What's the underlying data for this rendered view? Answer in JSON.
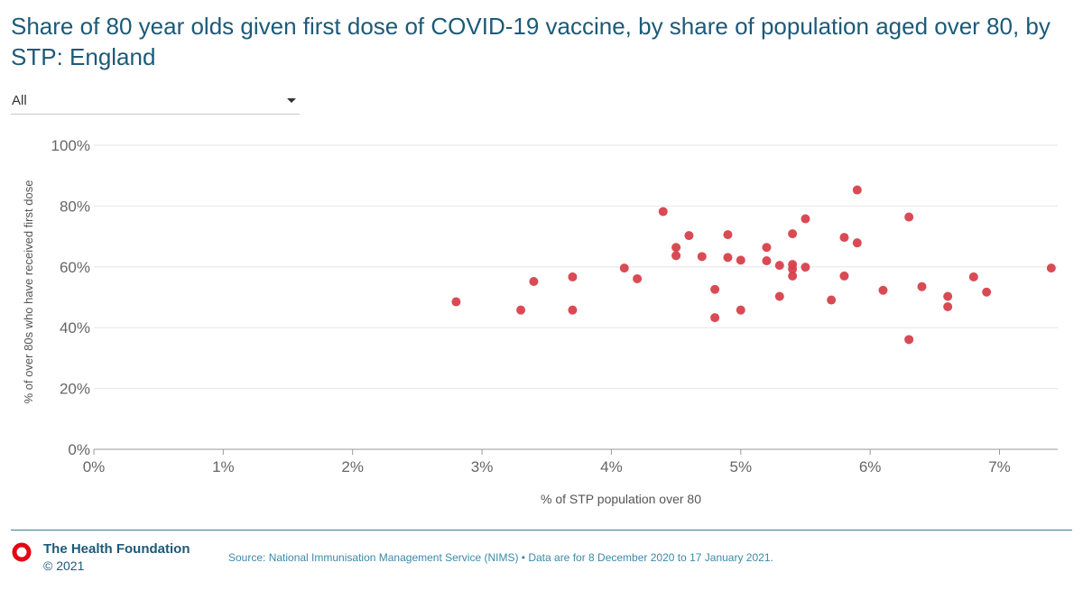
{
  "header": {
    "title": "Share of 80 year olds given first dose of COVID-19 vaccine, by share of population aged over 80, by STP: England"
  },
  "filter": {
    "selected": "All"
  },
  "chart_data": {
    "type": "scatter",
    "title": "Share of 80 year olds given first dose of COVID-19 vaccine, by share of population aged over 80, by STP: England",
    "xlabel": "% of STP population over 80",
    "ylabel": "% of over 80s who have received first dose",
    "xlim": [
      0,
      7.45
    ],
    "ylim": [
      0,
      100
    ],
    "x_ticks": [
      0,
      1,
      2,
      3,
      4,
      5,
      6,
      7
    ],
    "x_tick_labels": [
      "0%",
      "1%",
      "2%",
      "3%",
      "4%",
      "5%",
      "6%",
      "7%"
    ],
    "y_ticks": [
      0,
      20,
      40,
      60,
      80,
      100
    ],
    "y_tick_labels": [
      "0%",
      "20%",
      "40%",
      "60%",
      "80%",
      "100%"
    ],
    "grid": true,
    "point_color": "#d7414b",
    "points": [
      {
        "x": 2.8,
        "y": 48.5
      },
      {
        "x": 3.3,
        "y": 45.8
      },
      {
        "x": 3.4,
        "y": 55.2
      },
      {
        "x": 3.7,
        "y": 56.7
      },
      {
        "x": 3.7,
        "y": 45.8
      },
      {
        "x": 4.1,
        "y": 59.6
      },
      {
        "x": 4.2,
        "y": 56.1
      },
      {
        "x": 4.4,
        "y": 78.2
      },
      {
        "x": 4.5,
        "y": 66.4
      },
      {
        "x": 4.5,
        "y": 63.7
      },
      {
        "x": 4.6,
        "y": 70.3
      },
      {
        "x": 4.7,
        "y": 63.4
      },
      {
        "x": 4.8,
        "y": 52.6
      },
      {
        "x": 4.8,
        "y": 43.3
      },
      {
        "x": 4.9,
        "y": 70.6
      },
      {
        "x": 4.9,
        "y": 63.1
      },
      {
        "x": 5.0,
        "y": 62.2
      },
      {
        "x": 5.0,
        "y": 45.8
      },
      {
        "x": 5.2,
        "y": 66.4
      },
      {
        "x": 5.2,
        "y": 62.0
      },
      {
        "x": 5.3,
        "y": 60.5
      },
      {
        "x": 5.3,
        "y": 50.3
      },
      {
        "x": 5.4,
        "y": 70.9
      },
      {
        "x": 5.4,
        "y": 60.8
      },
      {
        "x": 5.4,
        "y": 59.3
      },
      {
        "x": 5.4,
        "y": 57.0
      },
      {
        "x": 5.5,
        "y": 75.8
      },
      {
        "x": 5.5,
        "y": 59.9
      },
      {
        "x": 5.7,
        "y": 49.1
      },
      {
        "x": 5.8,
        "y": 69.7
      },
      {
        "x": 5.8,
        "y": 57.0
      },
      {
        "x": 5.9,
        "y": 85.3
      },
      {
        "x": 5.9,
        "y": 67.9
      },
      {
        "x": 6.1,
        "y": 52.3
      },
      {
        "x": 6.3,
        "y": 76.4
      },
      {
        "x": 6.3,
        "y": 36.1
      },
      {
        "x": 6.4,
        "y": 53.5
      },
      {
        "x": 6.6,
        "y": 50.3
      },
      {
        "x": 6.6,
        "y": 46.9
      },
      {
        "x": 6.8,
        "y": 56.7
      },
      {
        "x": 6.9,
        "y": 51.7
      },
      {
        "x": 7.4,
        "y": 59.6
      }
    ]
  },
  "footer": {
    "org_name": "The Health Foundation",
    "copyright": "© 2021",
    "source": "Source: National Immunisation Management Service (NIMS) • Data are for 8 December 2020 to 17 January 2021.",
    "logo_color": "#e30613"
  }
}
